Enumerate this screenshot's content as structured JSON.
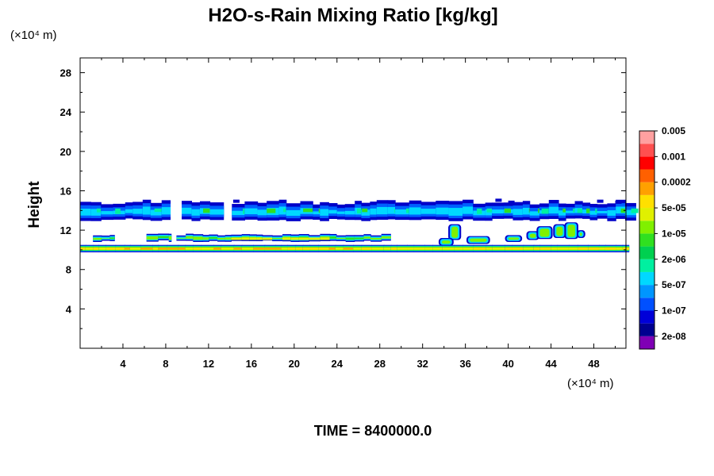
{
  "chart_data": {
    "type": "heatmap",
    "title": "H2O-s-Rain Mixing Ratio [kg/kg]",
    "xunit": "(×10⁴ m)",
    "yunit": "(×10⁴ m)",
    "ylabel": "Height",
    "xlabel": "",
    "footer": "TIME = 8400000.0",
    "xlim": [
      0,
      51
    ],
    "ylim": [
      0,
      29.5
    ],
    "xticks": [
      "4",
      "8",
      "12",
      "16",
      "20",
      "24",
      "28",
      "32",
      "36",
      "40",
      "44",
      "48"
    ],
    "yticks": [
      "4",
      "8",
      "12",
      "16",
      "20",
      "24",
      "28"
    ],
    "legend": {
      "labels": [
        "2e-08",
        "1e-07",
        "5e-07",
        "2e-06",
        "1e-05",
        "5e-05",
        "0.0002",
        "0.001",
        "0.005"
      ],
      "colors": [
        "#7f00b5",
        "#000090",
        "#0000d8",
        "#0050ff",
        "#0096ff",
        "#00d8ff",
        "#00f0a0",
        "#00d050",
        "#30e020",
        "#80f000",
        "#e0f000",
        "#ffe000",
        "#ffa000",
        "#ff6000",
        "#ff0000",
        "#ff5050",
        "#ffa0a0"
      ]
    },
    "regions": [
      {
        "name": "upper-band",
        "x": [
          0,
          51
        ],
        "y": [
          13.0,
          14.8
        ],
        "level": "5e-07 to 1e-05"
      },
      {
        "name": "middle-band",
        "x": [
          0,
          29
        ],
        "y": [
          10.8,
          11.6
        ],
        "level": "1e-05 to 5e-05"
      },
      {
        "name": "convective-cells",
        "x": [
          33,
          47
        ],
        "y": [
          11.0,
          12.8
        ],
        "level": "5e-06 to 5e-05"
      },
      {
        "name": "lower-band",
        "x": [
          0,
          51
        ],
        "y": [
          9.8,
          10.4
        ],
        "level": "5e-05 to 0.0002"
      }
    ]
  }
}
